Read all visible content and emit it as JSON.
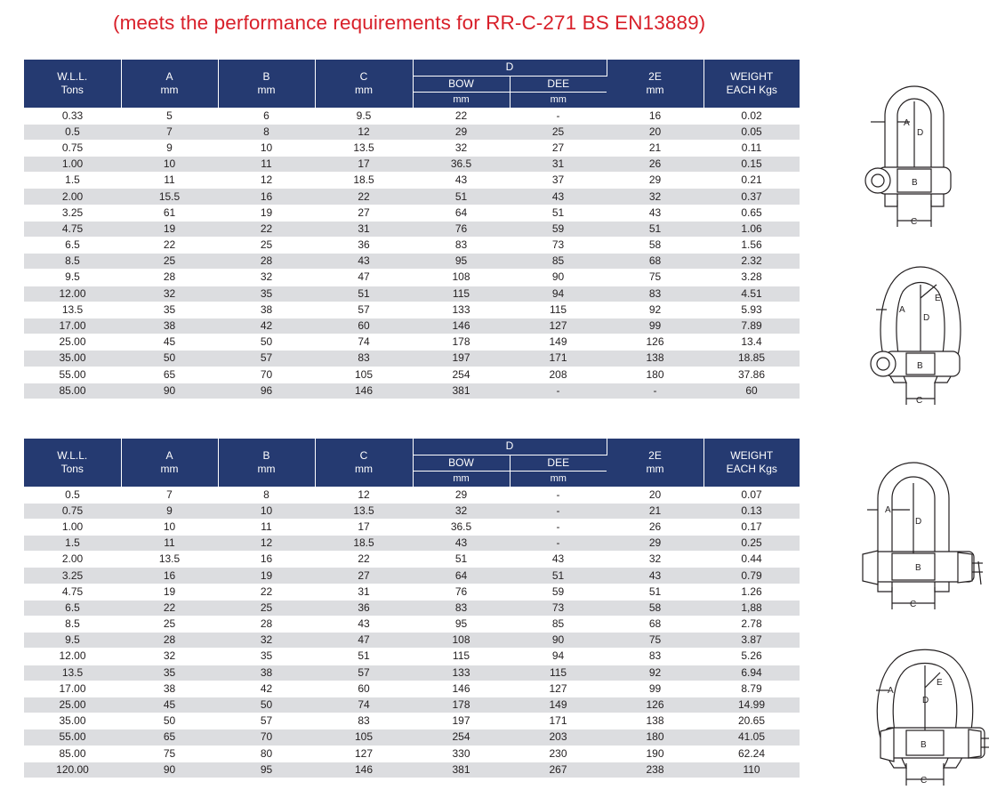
{
  "heading": "(meets the performance requirements for RR-C-271 BS EN13889)",
  "headers": {
    "wll": "W.L.L.",
    "wll_unit": "Tons",
    "a": "A",
    "b": "B",
    "c": "C",
    "mm": "mm",
    "d": "D",
    "bow": "BOW",
    "dee": "DEE",
    "e2": "2E",
    "weight": "WEIGHT",
    "weight_unit": "EACH Kgs"
  },
  "table1": {
    "rows": [
      [
        "0.33",
        "5",
        "6",
        "9.5",
        "22",
        "-",
        "16",
        "0.02"
      ],
      [
        "0.5",
        "7",
        "8",
        "12",
        "29",
        "25",
        "20",
        "0.05"
      ],
      [
        "0.75",
        "9",
        "10",
        "13.5",
        "32",
        "27",
        "21",
        "0.11"
      ],
      [
        "1.00",
        "10",
        "11",
        "17",
        "36.5",
        "31",
        "26",
        "0.15"
      ],
      [
        "1.5",
        "11",
        "12",
        "18.5",
        "43",
        "37",
        "29",
        "0.21"
      ],
      [
        "2.00",
        "15.5",
        "16",
        "22",
        "51",
        "43",
        "32",
        "0.37"
      ],
      [
        "3.25",
        "61",
        "19",
        "27",
        "64",
        "51",
        "43",
        "0.65"
      ],
      [
        "4.75",
        "19",
        "22",
        "31",
        "76",
        "59",
        "51",
        "1.06"
      ],
      [
        "6.5",
        "22",
        "25",
        "36",
        "83",
        "73",
        "58",
        "1.56"
      ],
      [
        "8.5",
        "25",
        "28",
        "43",
        "95",
        "85",
        "68",
        "2.32"
      ],
      [
        "9.5",
        "28",
        "32",
        "47",
        "108",
        "90",
        "75",
        "3.28"
      ],
      [
        "12.00",
        "32",
        "35",
        "51",
        "115",
        "94",
        "83",
        "4.51"
      ],
      [
        "13.5",
        "35",
        "38",
        "57",
        "133",
        "115",
        "92",
        "5.93"
      ],
      [
        "17.00",
        "38",
        "42",
        "60",
        "146",
        "127",
        "99",
        "7.89"
      ],
      [
        "25.00",
        "45",
        "50",
        "74",
        "178",
        "149",
        "126",
        "13.4"
      ],
      [
        "35.00",
        "50",
        "57",
        "83",
        "197",
        "171",
        "138",
        "18.85"
      ],
      [
        "55.00",
        "65",
        "70",
        "105",
        "254",
        "208",
        "180",
        "37.86"
      ],
      [
        "85.00",
        "90",
        "96",
        "146",
        "381",
        "-",
        "-",
        "60"
      ]
    ]
  },
  "table2": {
    "rows": [
      [
        "0.5",
        "7",
        "8",
        "12",
        "29",
        "-",
        "20",
        "0.07"
      ],
      [
        "0.75",
        "9",
        "10",
        "13.5",
        "32",
        "-",
        "21",
        "0.13"
      ],
      [
        "1.00",
        "10",
        "11",
        "17",
        "36.5",
        "-",
        "26",
        "0.17"
      ],
      [
        "1.5",
        "11",
        "12",
        "18.5",
        "43",
        "-",
        "29",
        "0.25"
      ],
      [
        "2.00",
        "13.5",
        "16",
        "22",
        "51",
        "43",
        "32",
        "0.44"
      ],
      [
        "3.25",
        "16",
        "19",
        "27",
        "64",
        "51",
        "43",
        "0.79"
      ],
      [
        "4.75",
        "19",
        "22",
        "31",
        "76",
        "59",
        "51",
        "1.26"
      ],
      [
        "6.5",
        "22",
        "25",
        "36",
        "83",
        "73",
        "58",
        "1,88"
      ],
      [
        "8.5",
        "25",
        "28",
        "43",
        "95",
        "85",
        "68",
        "2.78"
      ],
      [
        "9.5",
        "28",
        "32",
        "47",
        "108",
        "90",
        "75",
        "3.87"
      ],
      [
        "12.00",
        "32",
        "35",
        "51",
        "115",
        "94",
        "83",
        "5.26"
      ],
      [
        "13.5",
        "35",
        "38",
        "57",
        "133",
        "115",
        "92",
        "6.94"
      ],
      [
        "17.00",
        "38",
        "42",
        "60",
        "146",
        "127",
        "99",
        "8.79"
      ],
      [
        "25.00",
        "45",
        "50",
        "74",
        "178",
        "149",
        "126",
        "14.99"
      ],
      [
        "35.00",
        "50",
        "57",
        "83",
        "197",
        "171",
        "138",
        "20.65"
      ],
      [
        "55.00",
        "65",
        "70",
        "105",
        "254",
        "203",
        "180",
        "41.05"
      ],
      [
        "85.00",
        "75",
        "80",
        "127",
        "330",
        "230",
        "190",
        "62.24"
      ],
      [
        "120.00",
        "90",
        "95",
        "146",
        "381",
        "267",
        "238",
        "110"
      ]
    ]
  },
  "diagram_labels": {
    "a": "A",
    "b": "B",
    "c": "C",
    "d": "D",
    "e": "E"
  },
  "colors": {
    "heading": "#d8202a",
    "header_bg": "#253a71",
    "stripe": "#dcdde0"
  }
}
